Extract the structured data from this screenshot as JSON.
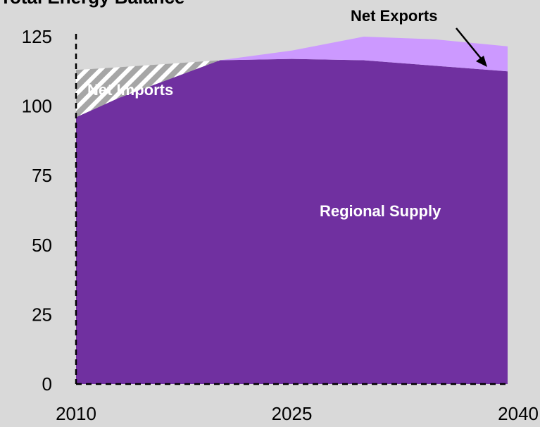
{
  "chart_data": {
    "type": "area",
    "title": "Total Energy Balance",
    "xlabel": "",
    "ylabel": "",
    "xlim": [
      2010,
      2040
    ],
    "ylim": [
      0,
      125
    ],
    "x_ticks": [
      "2010",
      "2025",
      "2040"
    ],
    "y_ticks": [
      "0",
      "25",
      "50",
      "75",
      "100",
      "125"
    ],
    "x": [
      2010,
      2013,
      2020,
      2025,
      2030,
      2035,
      2040
    ],
    "series": [
      {
        "name": "Regional Supply",
        "color": "#7030a0",
        "values": [
          96,
          103,
          116.5,
          117,
          116.5,
          114.5,
          112.5
        ]
      },
      {
        "name": "Net Imports",
        "pattern": "hatched",
        "color": "#a6a6a6",
        "values": [
          17,
          11,
          0,
          0,
          0,
          0,
          0
        ]
      },
      {
        "name": "Net Exports",
        "color": "#cc99ff",
        "values": [
          0,
          0,
          0,
          3,
          8.5,
          9.5,
          9
        ]
      }
    ],
    "annotations": {
      "net_exports": "Net Exports",
      "net_imports": "Net Imports",
      "regional_supply": "Regional Supply"
    },
    "colors": {
      "background": "#d9d9d9",
      "supply": "#7030a0",
      "exports": "#cc99ff",
      "hatch": "#ffffff"
    }
  }
}
